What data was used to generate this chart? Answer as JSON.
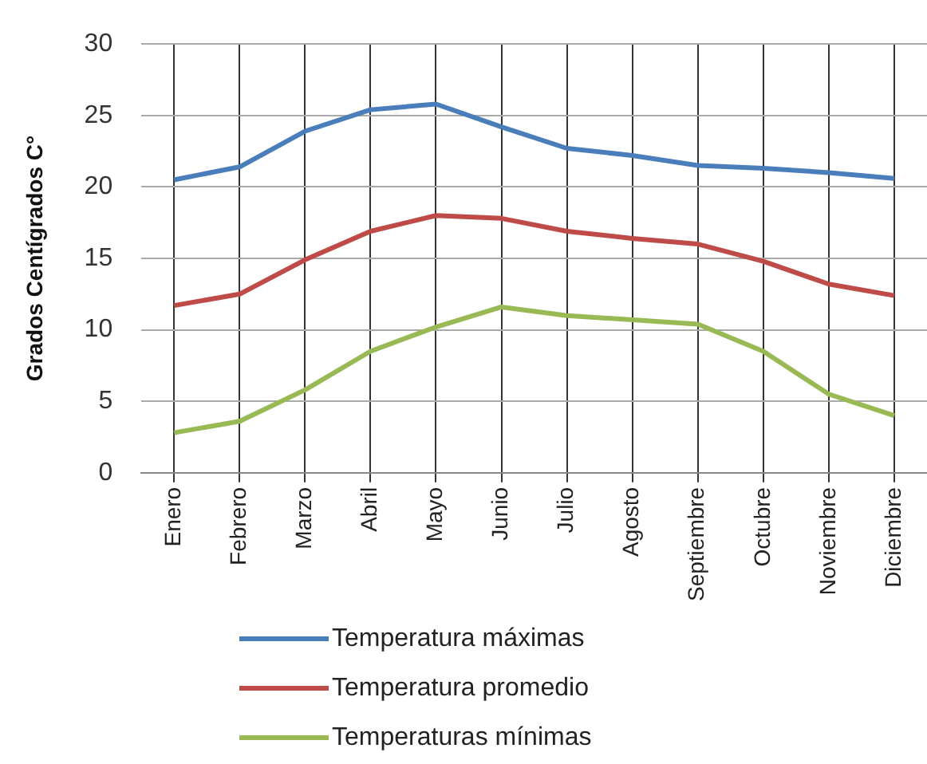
{
  "chart_data": {
    "type": "line",
    "ylabel": "Grados Centígrados C°",
    "categories": [
      "Enero",
      "Febrero",
      "Marzo",
      "Abril",
      "Mayo",
      "Junio",
      "Julio",
      "Agosto",
      "Septiembre",
      "Octubre",
      "Noviembre",
      "Diciembre"
    ],
    "series": [
      {
        "name": "Temperatura máximas",
        "color": "#4a7ebb",
        "values": [
          20.5,
          21.4,
          23.9,
          25.4,
          25.8,
          24.2,
          22.7,
          22.2,
          21.5,
          21.3,
          21.0,
          20.6
        ]
      },
      {
        "name": "Temperatura promedio",
        "color": "#be4b48",
        "values": [
          11.7,
          12.5,
          14.9,
          16.9,
          18.0,
          17.8,
          16.9,
          16.4,
          16.0,
          14.8,
          13.2,
          12.4
        ]
      },
      {
        "name": "Temperaturas mínimas",
        "color": "#98b954",
        "values": [
          2.8,
          3.6,
          5.8,
          8.5,
          10.2,
          11.6,
          11.0,
          10.7,
          10.4,
          8.5,
          5.5,
          4.0
        ]
      }
    ],
    "ylim": [
      0,
      30
    ],
    "yticks": [
      0,
      5,
      10,
      15,
      20,
      25,
      30
    ],
    "grid": true,
    "legend": "bottom",
    "marker": "none",
    "line_style": "solid"
  }
}
